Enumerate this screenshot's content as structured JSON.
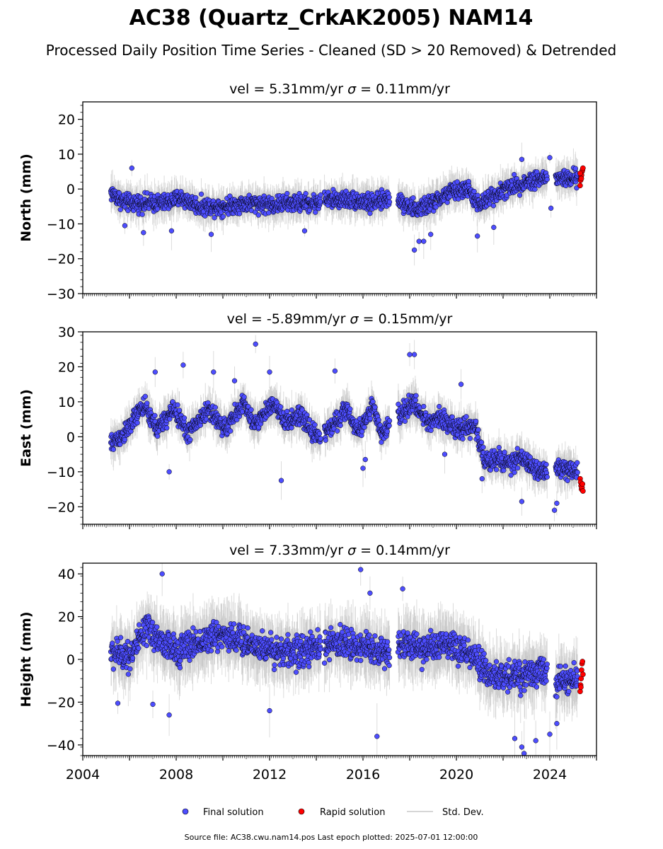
{
  "title": "AC38 (Quartz_CrkAK2005) NAM14",
  "subtitle": "Processed Daily Position Time Series - Cleaned (SD > 20 Removed) & Detrended",
  "footer": "Source file: AC38.cwu.nam14.pos  Last epoch plotted: 2025-07-01 12:00:00",
  "legend": {
    "items": [
      {
        "label": "Final solution",
        "kind": "marker",
        "color": "#4d4dff"
      },
      {
        "label": "Rapid solution",
        "kind": "marker",
        "color": "#ff0000"
      },
      {
        "label": "Std. Dev.",
        "kind": "line",
        "color": "#c8c8c8"
      }
    ]
  },
  "colors": {
    "final": "#4d4dff",
    "rapid": "#ff0000",
    "stddev": "#c0c0c0",
    "marker_edge": "#000000"
  },
  "chart_data": [
    {
      "type": "scatter",
      "panel": "north",
      "title_vel": "vel = 5.31mm/yr",
      "title_sigma": "= 0.11mm/yr",
      "ylabel": "North (mm)",
      "ylim": [
        -30,
        25
      ],
      "yticks": [
        -30,
        -20,
        -10,
        0,
        10,
        20
      ],
      "xlim": [
        2004.0,
        2026.0
      ],
      "trend": [
        [
          2005.2,
          -1
        ],
        [
          2005.8,
          -4
        ],
        [
          2006.5,
          -4
        ],
        [
          2007.5,
          -4
        ],
        [
          2008.2,
          -2.5
        ],
        [
          2009.0,
          -5
        ],
        [
          2010.0,
          -5
        ],
        [
          2011.0,
          -4
        ],
        [
          2012.0,
          -4.5
        ],
        [
          2013.0,
          -4
        ],
        [
          2014.0,
          -4
        ],
        [
          2014.3,
          -3
        ],
        [
          2015.5,
          -3
        ],
        [
          2016.5,
          -4
        ],
        [
          2017.4,
          -2
        ],
        [
          2017.6,
          -3.5
        ],
        [
          2018.3,
          -6
        ],
        [
          2019.0,
          -4
        ],
        [
          2019.7,
          -1
        ],
        [
          2020.5,
          0
        ],
        [
          2021.0,
          -5
        ],
        [
          2021.5,
          -2
        ],
        [
          2022.5,
          1
        ],
        [
          2023.5,
          3
        ],
        [
          2023.8,
          3
        ],
        [
          2024.0,
          3
        ],
        [
          2025.2,
          3
        ]
      ],
      "spread": 2.6,
      "gaps": [
        [
          2014.2,
          2014.35
        ],
        [
          2017.15,
          2017.5
        ],
        [
          2023.9,
          2024.25
        ]
      ],
      "outliers": [
        [
          2005.8,
          -10.5
        ],
        [
          2006.6,
          -12.5
        ],
        [
          2007.8,
          -12
        ],
        [
          2009.5,
          -13
        ],
        [
          2013.5,
          -12
        ],
        [
          2018.2,
          -17.5
        ],
        [
          2018.4,
          -15
        ],
        [
          2018.6,
          -15
        ],
        [
          2018.9,
          -13
        ],
        [
          2020.9,
          -13.5
        ],
        [
          2021.6,
          -11
        ],
        [
          2022.8,
          8.5
        ],
        [
          2024.0,
          9
        ],
        [
          2024.05,
          -5.5
        ],
        [
          2016.3,
          -7
        ],
        [
          2006.1,
          6
        ]
      ],
      "rapid": [
        [
          2025.3,
          1
        ],
        [
          2025.32,
          2.5
        ],
        [
          2025.34,
          3.5
        ],
        [
          2025.36,
          4
        ],
        [
          2025.38,
          5
        ],
        [
          2025.4,
          5.5
        ],
        [
          2025.42,
          6
        ],
        [
          2025.3,
          4.5
        ],
        [
          2025.35,
          3
        ]
      ]
    },
    {
      "type": "scatter",
      "panel": "east",
      "title_vel": "vel = -5.89mm/yr",
      "title_sigma": "= 0.15mm/yr",
      "ylabel": "East (mm)",
      "ylim": [
        -25,
        30
      ],
      "yticks": [
        -20,
        -10,
        0,
        10,
        20,
        30
      ],
      "xlim": [
        2004.0,
        2026.0
      ],
      "trend": [
        [
          2005.2,
          -2
        ],
        [
          2005.8,
          1
        ],
        [
          2006.6,
          9
        ],
        [
          2007.2,
          2
        ],
        [
          2007.9,
          8
        ],
        [
          2008.5,
          1
        ],
        [
          2009.4,
          8
        ],
        [
          2010.1,
          2
        ],
        [
          2010.9,
          10
        ],
        [
          2011.3,
          3
        ],
        [
          2012.2,
          10
        ],
        [
          2012.6,
          4
        ],
        [
          2013.3,
          6
        ],
        [
          2013.9,
          1
        ],
        [
          2014.2,
          0
        ],
        [
          2014.4,
          1
        ],
        [
          2015.3,
          8
        ],
        [
          2015.8,
          1
        ],
        [
          2016.4,
          9
        ],
        [
          2016.8,
          0
        ],
        [
          2017.4,
          8
        ],
        [
          2017.6,
          6
        ],
        [
          2018.1,
          10
        ],
        [
          2018.8,
          4
        ],
        [
          2019.3,
          6
        ],
        [
          2020.0,
          2
        ],
        [
          2020.8,
          3
        ],
        [
          2021.2,
          -7
        ],
        [
          2021.8,
          -6
        ],
        [
          2022.3,
          -8
        ],
        [
          2022.8,
          -6
        ],
        [
          2023.3,
          -9
        ],
        [
          2023.8,
          -10
        ],
        [
          2024.2,
          -9
        ],
        [
          2025.2,
          -10
        ]
      ],
      "spread": 2.8,
      "gaps": [
        [
          2014.2,
          2014.35
        ],
        [
          2017.15,
          2017.5
        ],
        [
          2023.9,
          2024.25
        ]
      ],
      "outliers": [
        [
          2007.7,
          -10
        ],
        [
          2012.5,
          -12.5
        ],
        [
          2011.4,
          26.5
        ],
        [
          2010.5,
          16
        ],
        [
          2009.6,
          18.5
        ],
        [
          2008.3,
          20.5
        ],
        [
          2007.1,
          18.5
        ],
        [
          2018.0,
          23.5
        ],
        [
          2018.2,
          23.5
        ],
        [
          2014.8,
          18.8
        ],
        [
          2012.0,
          18.5
        ],
        [
          2022.8,
          -18.5
        ],
        [
          2024.2,
          -21
        ],
        [
          2024.3,
          -19
        ],
        [
          2016.0,
          -9
        ],
        [
          2016.1,
          -6.5
        ],
        [
          2019.5,
          -5
        ],
        [
          2020.2,
          15
        ],
        [
          2021.1,
          -12
        ]
      ],
      "rapid": [
        [
          2025.3,
          -12
        ],
        [
          2025.32,
          -13
        ],
        [
          2025.34,
          -14
        ],
        [
          2025.36,
          -15
        ],
        [
          2025.38,
          -14.5
        ],
        [
          2025.4,
          -13.5
        ],
        [
          2025.42,
          -15.5
        ]
      ]
    },
    {
      "type": "scatter",
      "panel": "height",
      "title_vel": "vel = 7.33mm/yr",
      "title_sigma": "= 0.14mm/yr",
      "ylabel": "Height (mm)",
      "ylim": [
        -45,
        45
      ],
      "yticks": [
        -40,
        -20,
        0,
        20,
        40
      ],
      "xlim": [
        2004.0,
        2026.0
      ],
      "xticks": [
        2004,
        2008,
        2012,
        2016,
        2020,
        2024
      ],
      "trend": [
        [
          2005.2,
          3
        ],
        [
          2006.0,
          2
        ],
        [
          2006.8,
          14
        ],
        [
          2007.5,
          7
        ],
        [
          2008.0,
          4
        ],
        [
          2009.0,
          8
        ],
        [
          2010.0,
          12
        ],
        [
          2011.0,
          8
        ],
        [
          2012.0,
          5
        ],
        [
          2013.0,
          3
        ],
        [
          2014.0,
          5
        ],
        [
          2015.0,
          8
        ],
        [
          2016.0,
          6
        ],
        [
          2017.0,
          3
        ],
        [
          2017.6,
          8
        ],
        [
          2018.5,
          5
        ],
        [
          2019.5,
          6
        ],
        [
          2020.5,
          3
        ],
        [
          2021.5,
          -8
        ],
        [
          2022.5,
          -8
        ],
        [
          2023.5,
          -5
        ],
        [
          2024.2,
          -10
        ],
        [
          2025.2,
          -10
        ]
      ],
      "spread": 7.5,
      "gaps": [
        [
          2014.2,
          2014.35
        ],
        [
          2017.15,
          2017.5
        ],
        [
          2023.9,
          2024.25
        ]
      ],
      "outliers": [
        [
          2005.5,
          -20.5
        ],
        [
          2007.0,
          -21
        ],
        [
          2007.7,
          -26
        ],
        [
          2015.9,
          42
        ],
        [
          2016.6,
          -36
        ],
        [
          2022.8,
          -41
        ],
        [
          2022.9,
          -44
        ],
        [
          2022.5,
          -37
        ],
        [
          2023.4,
          -38
        ],
        [
          2017.7,
          33
        ],
        [
          2007.4,
          40
        ],
        [
          2016.3,
          31
        ],
        [
          2012.0,
          -24
        ],
        [
          2024.0,
          -35
        ],
        [
          2024.3,
          -30
        ]
      ],
      "rapid": [
        [
          2025.3,
          -15
        ],
        [
          2025.32,
          -12
        ],
        [
          2025.34,
          -9
        ],
        [
          2025.36,
          -5
        ],
        [
          2025.38,
          -2
        ],
        [
          2025.4,
          -1
        ],
        [
          2025.42,
          -7
        ],
        [
          2025.33,
          -13
        ]
      ]
    }
  ]
}
